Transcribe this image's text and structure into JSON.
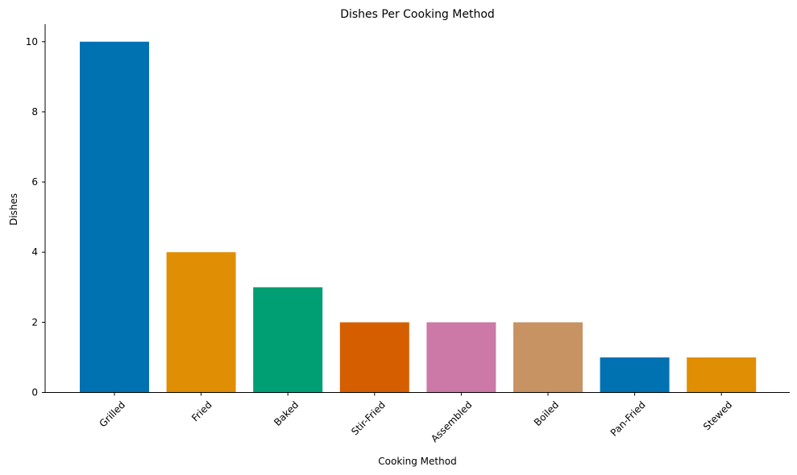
{
  "chart_data": {
    "type": "bar",
    "title": "Dishes Per Cooking Method",
    "xlabel": "Cooking Method",
    "ylabel": "Dishes",
    "categories": [
      "Grilled",
      "Fried",
      "Baked",
      "Stir-Fried",
      "Assembled",
      "Boiled",
      "Pan-Fried",
      "Stewed"
    ],
    "values": [
      10,
      4,
      3,
      2,
      2,
      2,
      1,
      1
    ],
    "colors": [
      "#0072B2",
      "#E08E04",
      "#009E73",
      "#D55E00",
      "#CC79A7",
      "#C79363",
      "#0072B2",
      "#E08E04"
    ],
    "ylim": [
      0,
      10.5
    ],
    "yticks": [
      0,
      2,
      4,
      6,
      8,
      10
    ],
    "grid": false,
    "legend": "none"
  }
}
